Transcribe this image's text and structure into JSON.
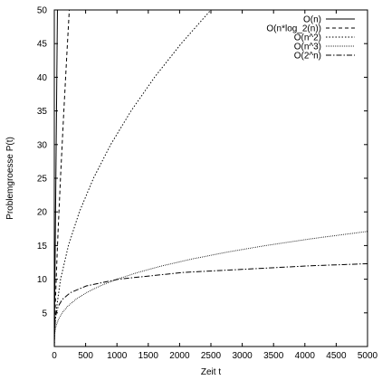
{
  "chart_data": {
    "type": "line",
    "xlabel": "Zeit t",
    "ylabel": "Problemgroesse P(t)",
    "xlim": [
      0,
      5000
    ],
    "ylim": [
      0,
      50
    ],
    "xticks": [
      0,
      500,
      1000,
      1500,
      2000,
      2500,
      3000,
      3500,
      4000,
      4500,
      5000
    ],
    "yticks": [
      5,
      10,
      15,
      20,
      25,
      30,
      35,
      40,
      45,
      50
    ],
    "grid": false,
    "legend_position": "top-right",
    "series": [
      {
        "name": "O(n)",
        "dash": "solid",
        "x": [
          0,
          50
        ],
        "y": [
          0,
          50
        ]
      },
      {
        "name": "O(n*log_2(n))",
        "dash": "dashed",
        "x": [
          1,
          10,
          20,
          40,
          60,
          100,
          150,
          200,
          250,
          282
        ],
        "y": [
          1,
          4.3,
          7.3,
          12.5,
          17.1,
          25.3,
          34.6,
          43.4,
          51.8,
          56.3
        ]
      },
      {
        "name": "O(n^2)",
        "dash": "dotted",
        "x": [
          0,
          4,
          25,
          100,
          225,
          400,
          625,
          900,
          1225,
          1600,
          2025,
          2500
        ],
        "y": [
          0,
          2,
          5,
          10,
          15,
          20,
          25,
          30,
          35,
          40,
          45,
          50
        ]
      },
      {
        "name": "O(n^3)",
        "dash": "fine-dotted",
        "x": [
          0,
          8,
          27,
          64,
          125,
          216,
          343,
          512,
          729,
          1000,
          1331,
          1728,
          2197,
          2744,
          3375,
          4096,
          4913,
          5000
        ],
        "y": [
          0,
          2,
          3,
          4,
          5,
          6,
          7,
          8,
          9,
          10,
          11,
          12,
          13,
          14,
          15,
          16,
          17,
          17.1
        ]
      },
      {
        "name": "O(2^n)",
        "dash": "dash-dot",
        "x": [
          1,
          4,
          16,
          32,
          64,
          128,
          256,
          512,
          1024,
          2048,
          4096,
          5000
        ],
        "y": [
          0,
          2,
          4,
          5,
          6,
          7,
          8,
          9,
          10,
          11,
          12,
          12.3
        ]
      }
    ]
  }
}
